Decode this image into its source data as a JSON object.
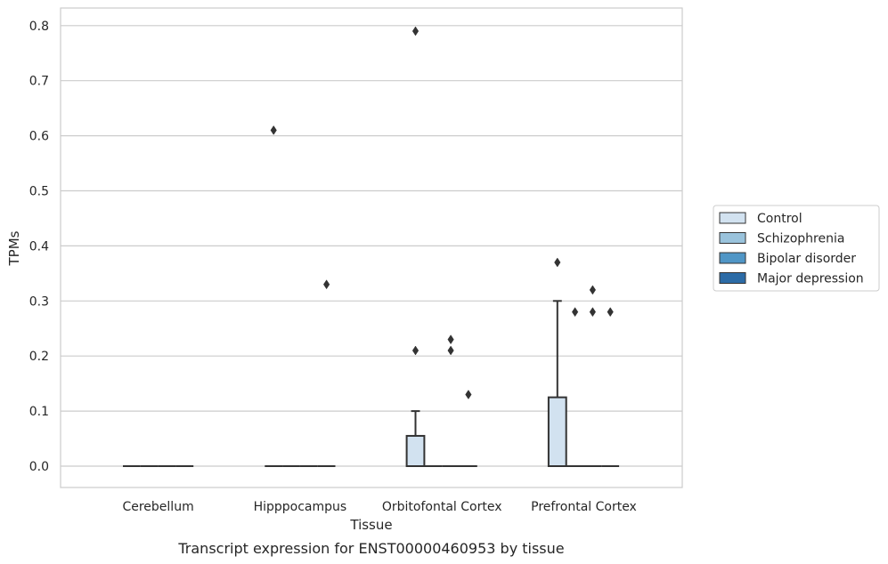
{
  "chart_data": {
    "type": "box",
    "caption": "Transcript expression for ENST00000460953 by tissue",
    "xlabel": "Tissue",
    "ylabel": "TPMs",
    "ylim": [
      -0.04,
      0.83
    ],
    "yticks": [
      0.0,
      0.1,
      0.2,
      0.3,
      0.4,
      0.5,
      0.6,
      0.7,
      0.8
    ],
    "ytick_labels": [
      "0.0",
      "0.1",
      "0.2",
      "0.3",
      "0.4",
      "0.5",
      "0.6",
      "0.7",
      "0.8"
    ],
    "grid": true,
    "legend_position": "right",
    "categories": [
      "Cerebellum",
      "Hipppocampus",
      "Orbitofontal Cortex",
      "Prefrontal Cortex"
    ],
    "series": [
      {
        "name": "Control",
        "color": "#d2e2f0",
        "boxes": [
          {
            "q1": 0,
            "median": 0,
            "q3": 0,
            "whisker_low": 0,
            "whisker_high": 0,
            "outliers": []
          },
          {
            "q1": 0,
            "median": 0,
            "q3": 0,
            "whisker_low": 0,
            "whisker_high": 0,
            "outliers": [
              0.61
            ]
          },
          {
            "q1": 0,
            "median": 0,
            "q3": 0.055,
            "whisker_low": 0,
            "whisker_high": 0.1,
            "outliers": [
              0.21,
              0.79
            ]
          },
          {
            "q1": 0,
            "median": 0,
            "q3": 0.125,
            "whisker_low": 0,
            "whisker_high": 0.3,
            "outliers": [
              0.37
            ]
          }
        ]
      },
      {
        "name": "Schizophrenia",
        "color": "#9ac3dc",
        "boxes": [
          {
            "q1": 0,
            "median": 0,
            "q3": 0,
            "whisker_low": 0,
            "whisker_high": 0,
            "outliers": []
          },
          {
            "q1": 0,
            "median": 0,
            "q3": 0,
            "whisker_low": 0,
            "whisker_high": 0,
            "outliers": []
          },
          {
            "q1": 0,
            "median": 0,
            "q3": 0,
            "whisker_low": 0,
            "whisker_high": 0,
            "outliers": []
          },
          {
            "q1": 0,
            "median": 0,
            "q3": 0,
            "whisker_low": 0,
            "whisker_high": 0,
            "outliers": [
              0.28
            ]
          }
        ]
      },
      {
        "name": "Bipolar disorder",
        "color": "#5096c6",
        "boxes": [
          {
            "q1": 0,
            "median": 0,
            "q3": 0,
            "whisker_low": 0,
            "whisker_high": 0,
            "outliers": []
          },
          {
            "q1": 0,
            "median": 0,
            "q3": 0,
            "whisker_low": 0,
            "whisker_high": 0,
            "outliers": []
          },
          {
            "q1": 0,
            "median": 0,
            "q3": 0,
            "whisker_low": 0,
            "whisker_high": 0,
            "outliers": [
              0.21,
              0.23
            ]
          },
          {
            "q1": 0,
            "median": 0,
            "q3": 0,
            "whisker_low": 0,
            "whisker_high": 0,
            "outliers": [
              0.28,
              0.32
            ]
          }
        ]
      },
      {
        "name": "Major depression",
        "color": "#2c6ba6",
        "boxes": [
          {
            "q1": 0,
            "median": 0,
            "q3": 0,
            "whisker_low": 0,
            "whisker_high": 0,
            "outliers": []
          },
          {
            "q1": 0,
            "median": 0,
            "q3": 0,
            "whisker_low": 0,
            "whisker_high": 0,
            "outliers": [
              0.33
            ]
          },
          {
            "q1": 0,
            "median": 0,
            "q3": 0,
            "whisker_low": 0,
            "whisker_high": 0,
            "outliers": [
              0.13
            ]
          },
          {
            "q1": 0,
            "median": 0,
            "q3": 0,
            "whisker_low": 0,
            "whisker_high": 0,
            "outliers": [
              0.28
            ]
          }
        ]
      }
    ]
  }
}
